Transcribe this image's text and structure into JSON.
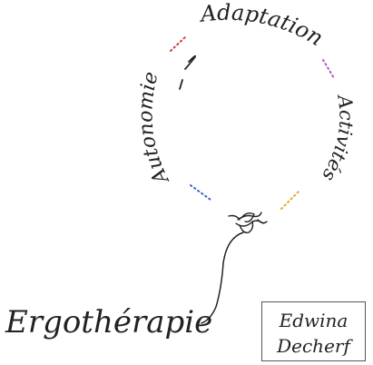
{
  "logo": {
    "words": {
      "top": "Adaptation",
      "left": "Autonomie",
      "right": "Activités",
      "base": "Ergothérapie"
    },
    "dot_colors": {
      "red": "#d23a3a",
      "purple": "#b24fd0",
      "blue": "#3b5fd6",
      "orange": "#f0a030"
    },
    "line_color": "#222222"
  },
  "signature": {
    "first_name": "Edwina",
    "last_name": "Decherf"
  }
}
